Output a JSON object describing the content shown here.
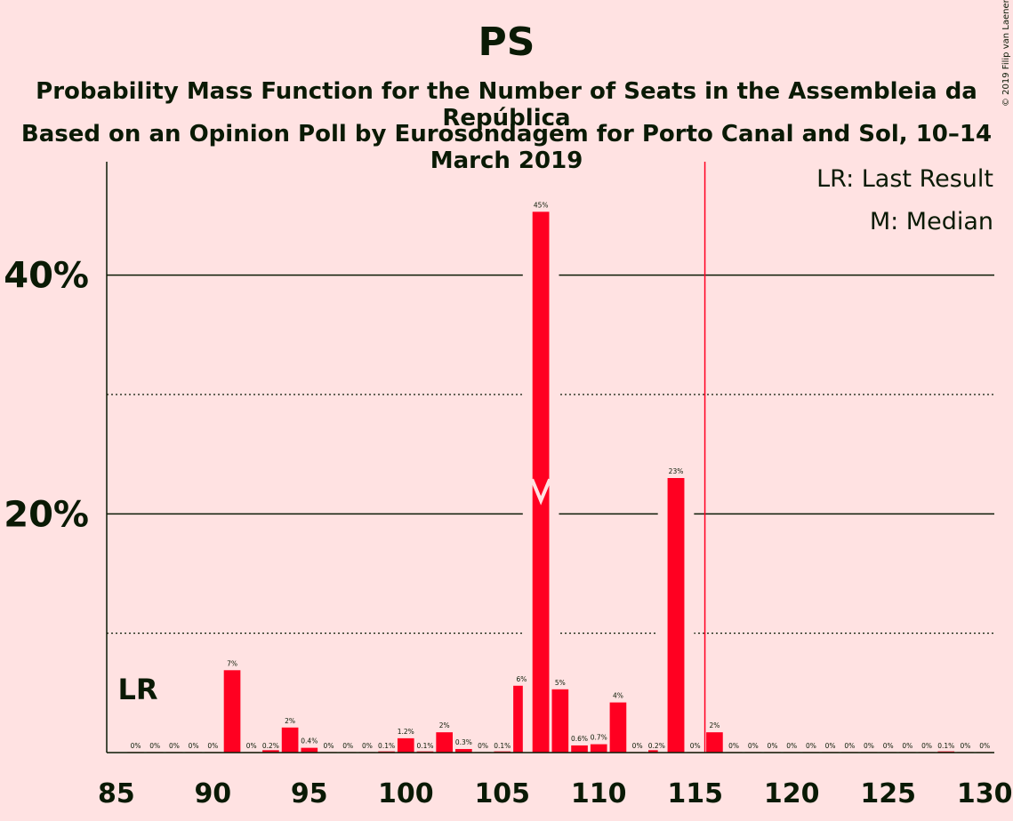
{
  "chart_data": {
    "type": "bar",
    "title": "PS",
    "subtitle": "Probability Mass Function for the Number of Seats in the Assembleia da República",
    "subtitle2": "Based on an Opinion Poll by Eurosondagem for Porto Canal and Sol, 10–14 March 2019",
    "copyright": "© 2019 Filip van Laenen",
    "legend": [
      "LR: Last Result",
      "M: Median"
    ],
    "legend_placement": "top-right",
    "xlim": [
      85,
      130
    ],
    "ylim": [
      0,
      49.5
    ],
    "x_ticks": [
      "85",
      "90",
      "95",
      "100",
      "105",
      "110",
      "115",
      "120",
      "125",
      "130"
    ],
    "y_ticks": [
      {
        "value": 20,
        "label": "20%"
      },
      {
        "value": 40,
        "label": "40%"
      }
    ],
    "minor_grid": [
      10,
      30
    ],
    "bar_color": "#FF0021",
    "last_result_seat": 86,
    "last_result_label": "LR",
    "median_seat": 107,
    "majority_line_seat": 116,
    "x": [
      86,
      87,
      88,
      89,
      90,
      91,
      92,
      93,
      94,
      95,
      96,
      97,
      98,
      99,
      100,
      101,
      102,
      103,
      104,
      105,
      106,
      107,
      108,
      109,
      110,
      111,
      112,
      113,
      114,
      115,
      116,
      117,
      118,
      119,
      120,
      121,
      122,
      123,
      124,
      125,
      126,
      127,
      128,
      129,
      130
    ],
    "values": [
      0,
      0,
      0,
      0,
      0,
      6.9,
      0,
      0.2,
      2.1,
      0.4,
      0,
      0,
      0,
      0.1,
      1.2,
      0.1,
      1.7,
      0.3,
      0,
      0.1,
      5.6,
      45.3,
      5.3,
      0.6,
      0.7,
      4.2,
      0,
      0.2,
      23,
      0,
      1.7,
      0,
      0,
      0,
      0,
      0,
      0,
      0,
      0,
      0,
      0,
      0,
      0.1,
      0,
      0
    ],
    "labels": [
      "0%",
      "0%",
      "0%",
      "0%",
      "0%",
      "7%",
      "0%",
      "0.2%",
      "2%",
      "0.4%",
      "0%",
      "0%",
      "0%",
      "0.1%",
      "1.2%",
      "0.1%",
      "2%",
      "0.3%",
      "0%",
      "0.1%",
      "6%",
      "45%",
      "5%",
      "0.6%",
      "0.7%",
      "4%",
      "0%",
      "0.2%",
      "23%",
      "0%",
      "2%",
      "0%",
      "0%",
      "0%",
      "0%",
      "0%",
      "0%",
      "0%",
      "0%",
      "0%",
      "0%",
      "0%",
      "0.1%",
      "0%",
      "0%"
    ]
  }
}
